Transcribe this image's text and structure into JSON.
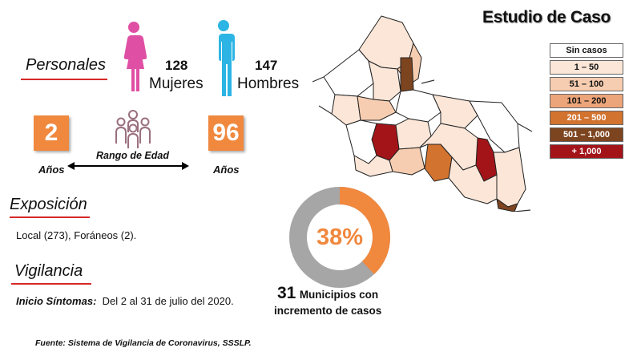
{
  "title": "Estudio de Caso",
  "personales": {
    "label": "Personales",
    "mujeres_count": "128",
    "mujeres_label": "Mujeres",
    "hombres_count": "147",
    "hombres_label": "Hombres"
  },
  "edad": {
    "min": "2",
    "max": "96",
    "min_unit": "Años",
    "max_unit": "Años",
    "range_label": "Rango de Edad"
  },
  "exposicion": {
    "label": "Exposición",
    "text": "Local (273), Foráneos (2)."
  },
  "vigilancia": {
    "label": "Vigilancia",
    "inicio_label": "Inicio Síntomas:",
    "inicio_value": "Del 2 al 31 de julio del 2020."
  },
  "donut": {
    "percent_label": "38%",
    "percent": 38,
    "fill_color": "#f0883e",
    "rest_color": "#a6a6a6"
  },
  "municipios": {
    "count": "31",
    "line1": "Municipios con",
    "line2": "incremento de casos"
  },
  "legend": [
    {
      "label": "Sin casos",
      "color": "#ffffff"
    },
    {
      "label": "1 – 50",
      "color": "#fbe6d8"
    },
    {
      "label": "51 – 100",
      "color": "#f6cdb0"
    },
    {
      "label": "101 – 200",
      "color": "#eca57a"
    },
    {
      "label": "201 – 500",
      "color": "#d2732f"
    },
    {
      "label": "501 – 1,000",
      "color": "#7d4420"
    },
    {
      "label": "+ 1,000",
      "color": "#a31419"
    }
  ],
  "colors": {
    "mujeres": "#df4fa4",
    "hombres": "#2cb5e4",
    "age_box": "#f0883e",
    "underline": "#d62828"
  },
  "footer": "Fuente: Sistema de Vigilancia de Coronavirus, SSSLP."
}
